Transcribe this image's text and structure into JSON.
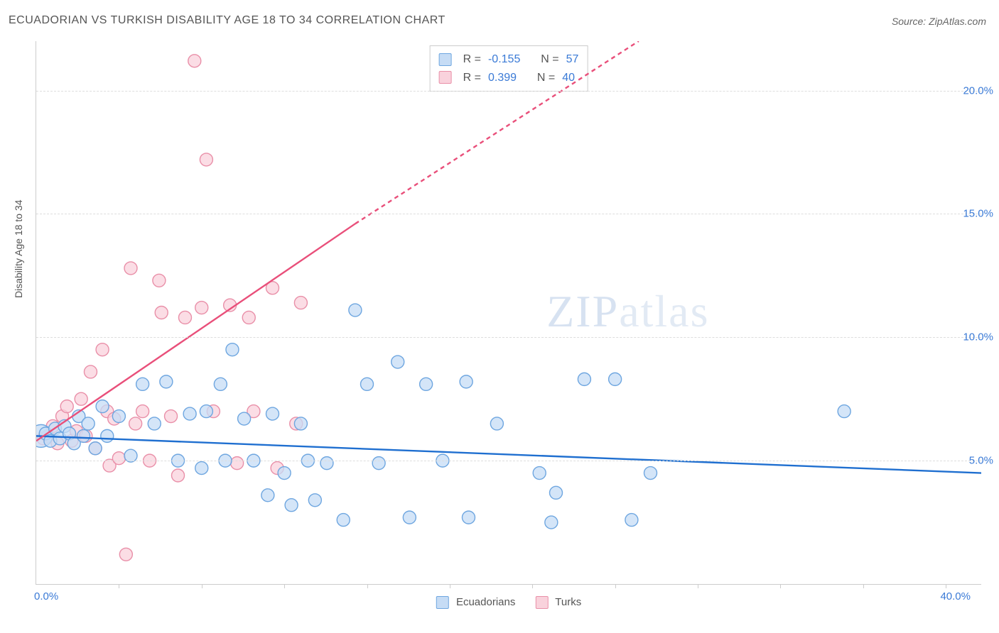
{
  "title": "ECUADORIAN VS TURKISH DISABILITY AGE 18 TO 34 CORRELATION CHART",
  "source": "Source: ZipAtlas.com",
  "ylabel": "Disability Age 18 to 34",
  "watermark_a": "ZIP",
  "watermark_b": "atlas",
  "chart": {
    "type": "scatter",
    "xlim": [
      0,
      40
    ],
    "ylim": [
      0,
      22
    ],
    "yticks": [
      {
        "v": 5.0,
        "label": "5.0%"
      },
      {
        "v": 10.0,
        "label": "10.0%"
      },
      {
        "v": 15.0,
        "label": "15.0%"
      },
      {
        "v": 20.0,
        "label": "20.0%"
      }
    ],
    "xtick_minor": [
      3.5,
      7,
      10.5,
      14,
      17.5,
      21,
      24.5,
      28,
      31.5,
      35,
      38.5
    ],
    "x_origin_label": "0.0%",
    "x_max_label": "40.0%",
    "background_color": "#ffffff",
    "grid_color": "#dddddd",
    "marker_radius": 9,
    "marker_stroke_width": 1.4,
    "trend_line_width": 2.4,
    "dash_pattern": "6,5"
  },
  "series": {
    "ecuadorians": {
      "label": "Ecuadorians",
      "fill": "#c6dcf5",
      "stroke": "#6ea6e0",
      "trend_color": "#1f6fd0",
      "R": "-0.155",
      "N": "57",
      "trend_solid": {
        "x1": 0,
        "y1": 6.0,
        "x2": 40,
        "y2": 4.5
      },
      "points": [
        [
          0.2,
          6.0,
          16
        ],
        [
          0.4,
          6.1,
          9
        ],
        [
          0.6,
          5.8,
          9
        ],
        [
          0.8,
          6.3,
          9
        ],
        [
          1.0,
          5.9,
          9
        ],
        [
          1.2,
          6.4,
          9
        ],
        [
          1.4,
          6.1,
          9
        ],
        [
          1.6,
          5.7,
          9
        ],
        [
          1.8,
          6.8,
          9
        ],
        [
          2.0,
          6.0,
          9
        ],
        [
          2.2,
          6.5,
          9
        ],
        [
          2.5,
          5.5,
          9
        ],
        [
          2.8,
          7.2,
          9
        ],
        [
          3.0,
          6.0,
          9
        ],
        [
          3.5,
          6.8,
          9
        ],
        [
          4.0,
          5.2,
          9
        ],
        [
          4.5,
          8.1,
          9
        ],
        [
          5.0,
          6.5,
          9
        ],
        [
          5.5,
          8.2,
          9
        ],
        [
          6.0,
          5.0,
          9
        ],
        [
          6.5,
          6.9,
          9
        ],
        [
          7.0,
          4.7,
          9
        ],
        [
          7.2,
          7.0,
          9
        ],
        [
          7.8,
          8.1,
          9
        ],
        [
          8.0,
          5.0,
          9
        ],
        [
          8.3,
          9.5,
          9
        ],
        [
          8.8,
          6.7,
          9
        ],
        [
          9.2,
          5.0,
          9
        ],
        [
          9.8,
          3.6,
          9
        ],
        [
          10.0,
          6.9,
          9
        ],
        [
          10.5,
          4.5,
          9
        ],
        [
          10.8,
          3.2,
          9
        ],
        [
          11.2,
          6.5,
          9
        ],
        [
          11.5,
          5.0,
          9
        ],
        [
          11.8,
          3.4,
          9
        ],
        [
          12.3,
          4.9,
          9
        ],
        [
          13.0,
          2.6,
          9
        ],
        [
          13.5,
          11.1,
          9
        ],
        [
          14.0,
          8.1,
          9
        ],
        [
          14.5,
          4.9,
          9
        ],
        [
          15.3,
          9.0,
          9
        ],
        [
          15.8,
          2.7,
          9
        ],
        [
          16.5,
          8.1,
          9
        ],
        [
          17.2,
          5.0,
          9
        ],
        [
          18.2,
          8.2,
          9
        ],
        [
          18.3,
          2.7,
          9
        ],
        [
          19.5,
          6.5,
          9
        ],
        [
          21.3,
          4.5,
          9
        ],
        [
          21.8,
          2.5,
          9
        ],
        [
          22.0,
          3.7,
          9
        ],
        [
          23.2,
          8.3,
          9
        ],
        [
          24.5,
          8.3,
          9
        ],
        [
          25.2,
          2.6,
          9
        ],
        [
          26.0,
          4.5,
          9
        ],
        [
          34.2,
          7.0,
          9
        ]
      ]
    },
    "turks": {
      "label": "Turks",
      "fill": "#f9d2dc",
      "stroke": "#e98fa8",
      "trend_color": "#e94f7a",
      "R": "0.399",
      "N": "40",
      "trend_solid": {
        "x1": 0,
        "y1": 5.8,
        "x2": 13.5,
        "y2": 14.6
      },
      "trend_dashed": {
        "x1": 13.5,
        "y1": 14.6,
        "x2": 25.5,
        "y2": 22.0
      },
      "points": [
        [
          0.3,
          5.9,
          9
        ],
        [
          0.5,
          6.0,
          9
        ],
        [
          0.7,
          6.4,
          9
        ],
        [
          0.9,
          5.7,
          9
        ],
        [
          1.1,
          6.8,
          9
        ],
        [
          1.3,
          7.2,
          9
        ],
        [
          1.5,
          5.8,
          9
        ],
        [
          1.7,
          6.2,
          9
        ],
        [
          1.9,
          7.5,
          9
        ],
        [
          2.1,
          6.0,
          9
        ],
        [
          2.3,
          8.6,
          9
        ],
        [
          2.5,
          5.5,
          9
        ],
        [
          2.8,
          9.5,
          9
        ],
        [
          3.0,
          7.0,
          9
        ],
        [
          3.1,
          4.8,
          9
        ],
        [
          3.3,
          6.7,
          9
        ],
        [
          3.5,
          5.1,
          9
        ],
        [
          3.8,
          1.2,
          9
        ],
        [
          4.0,
          12.8,
          9
        ],
        [
          4.2,
          6.5,
          9
        ],
        [
          4.5,
          7.0,
          9
        ],
        [
          4.8,
          5.0,
          9
        ],
        [
          5.2,
          12.3,
          9
        ],
        [
          5.3,
          11.0,
          9
        ],
        [
          5.7,
          6.8,
          9
        ],
        [
          6.0,
          4.4,
          9
        ],
        [
          6.3,
          10.8,
          9
        ],
        [
          6.7,
          21.2,
          9
        ],
        [
          7.0,
          11.2,
          9
        ],
        [
          7.2,
          17.2,
          9
        ],
        [
          7.5,
          7.0,
          9
        ],
        [
          8.2,
          11.3,
          9
        ],
        [
          8.5,
          4.9,
          9
        ],
        [
          9.0,
          10.8,
          9
        ],
        [
          9.2,
          7.0,
          9
        ],
        [
          10.0,
          12.0,
          9
        ],
        [
          10.2,
          4.7,
          9
        ],
        [
          11.0,
          6.5,
          9
        ],
        [
          11.2,
          11.4,
          9
        ]
      ]
    }
  },
  "stats_labels": {
    "R": "R =",
    "N": "N ="
  },
  "stat_value_color": "#3a7ad6"
}
